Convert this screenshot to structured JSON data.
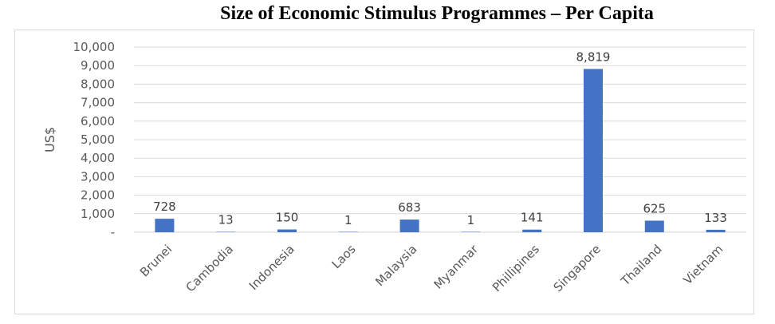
{
  "chart_data": {
    "type": "bar",
    "title": "Size of Economic Stimulus Programmes – Per Capita",
    "ylabel": "US$",
    "xlabel": "",
    "categories": [
      "Brunei",
      "Cambodia",
      "Indonesia",
      "Laos",
      "Malaysia",
      "Myanmar",
      "Phillipines",
      "Singapore",
      "Thailand",
      "Vietnam"
    ],
    "values": [
      728,
      13,
      150,
      1,
      683,
      1,
      141,
      8819,
      625,
      133
    ],
    "value_labels": [
      "728",
      "13",
      "150",
      "1",
      "683",
      "1",
      "141",
      "8,819",
      "625",
      "133"
    ],
    "ylim": [
      0,
      10000
    ],
    "yticks": [
      0,
      1000,
      2000,
      3000,
      4000,
      5000,
      6000,
      7000,
      8000,
      9000,
      10000
    ],
    "ytick_labels": [
      "-",
      "1,000",
      "2,000",
      "3,000",
      "4,000",
      "5,000",
      "6,000",
      "7,000",
      "8,000",
      "9,000",
      "10,000"
    ],
    "grid": true,
    "legend": "none",
    "bar_color": "#4472c4"
  }
}
